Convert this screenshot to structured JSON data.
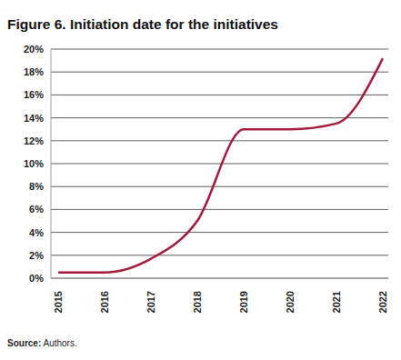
{
  "chart_data": {
    "type": "line",
    "title": "Figure 6. Initiation date for the initiatives",
    "source": "Source: Authors.",
    "categories": [
      "2015",
      "2016",
      "2017",
      "2018",
      "2019",
      "2020",
      "2021",
      "2022"
    ],
    "values": [
      0.5,
      0.5,
      1.7,
      5,
      13,
      13,
      13.5,
      19.2
    ],
    "color": "#a31a3e",
    "ylim": [
      0,
      20
    ],
    "yticks": [
      {
        "value": 0,
        "label": "0%"
      },
      {
        "value": 2,
        "label": "2%"
      },
      {
        "value": 4,
        "label": "4%"
      },
      {
        "value": 6,
        "label": "6%"
      },
      {
        "value": 8,
        "label": "8%"
      },
      {
        "value": 10,
        "label": "10%"
      },
      {
        "value": 12,
        "label": "12%"
      },
      {
        "value": 14,
        "label": "14%"
      },
      {
        "value": 16,
        "label": "16%"
      },
      {
        "value": 18,
        "label": "18%"
      },
      {
        "value": 20,
        "label": "20%"
      }
    ],
    "grid": true
  }
}
